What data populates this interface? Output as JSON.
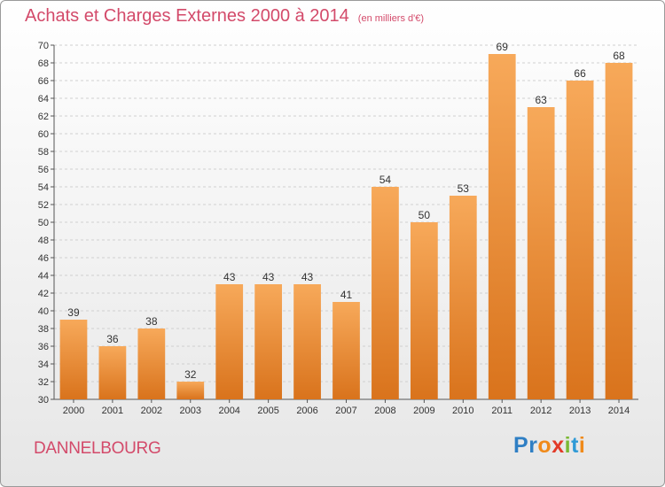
{
  "header": {
    "title": "Achats et Charges Externes 2000 à 2014",
    "subtitle": "(en milliers d'€)"
  },
  "footer": {
    "commune": "DANNELBOURG",
    "logo_letters": [
      {
        "ch": "P",
        "color": "#2f7fc4"
      },
      {
        "ch": "r",
        "color": "#2f7fc4"
      },
      {
        "ch": "o",
        "color": "#f08a1a"
      },
      {
        "ch": "x",
        "color": "#e23a28"
      },
      {
        "ch": "i",
        "color": "#7ab833"
      },
      {
        "ch": "t",
        "color": "#2f9ad6"
      },
      {
        "ch": "i",
        "color": "#f08a1a"
      }
    ]
  },
  "colors": {
    "title": "#d34a6a",
    "bar_light": "#f7a95a",
    "bar_dark": "#d9731c",
    "grid": "#d0d0d0"
  },
  "chart_data": {
    "type": "bar",
    "title": "Achats et Charges Externes 2000 à 2014",
    "categories": [
      "2000",
      "2001",
      "2002",
      "2003",
      "2004",
      "2005",
      "2006",
      "2007",
      "2008",
      "2009",
      "2010",
      "2011",
      "2012",
      "2013",
      "2014"
    ],
    "values": [
      39,
      36,
      38,
      32,
      43,
      43,
      43,
      41,
      54,
      50,
      53,
      69,
      63,
      66,
      68
    ],
    "ylim": [
      30,
      70
    ],
    "ytick_step": 2,
    "grid": true
  }
}
